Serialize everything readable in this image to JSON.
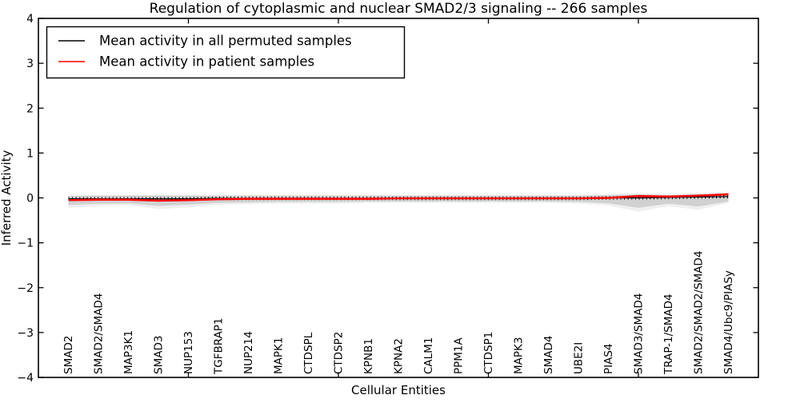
{
  "chart_data": {
    "type": "line",
    "title": "Regulation of cytoplasmic and nuclear SMAD2/3 signaling -- 266 samples",
    "xlabel": "Cellular Entities",
    "ylabel": "Inferred Activity",
    "xlim": [
      0,
      24
    ],
    "ylim": [
      -4,
      4
    ],
    "grid": false,
    "legend_position": "upper left",
    "yticks": [
      4,
      3,
      2,
      1,
      0,
      -1,
      -2,
      -3,
      -4
    ],
    "yticklabels": [
      "4",
      "3",
      "2",
      "1",
      "0",
      "−1",
      "−2",
      "−3",
      "−4"
    ],
    "xticks_major": [
      5,
      10,
      15,
      20
    ],
    "categories": [
      "SMAD2",
      "SMAD2/SMAD4",
      "MAP3K1",
      "SMAD3",
      "NUP153",
      "TGFBRAP1",
      "NUP214",
      "MAPK1",
      "CTDSPL",
      "CTDSP2",
      "KPNB1",
      "KPNA2",
      "CALM1",
      "PPM1A",
      "CTDSP1",
      "MAPK3",
      "SMAD4",
      "UBE2I",
      "PIAS4",
      "SMAD3/SMAD4",
      "TRAP-1/SMAD4",
      "SMAD2/SMAD2/SMAD4",
      "SMAD4/Ubc9/PIASy"
    ],
    "x": [
      1,
      2,
      3,
      4,
      5,
      6,
      7,
      8,
      9,
      10,
      11,
      12,
      13,
      14,
      15,
      16,
      17,
      18,
      19,
      20,
      21,
      22,
      23
    ],
    "series": [
      {
        "name": "Mean activity in all permuted samples",
        "color": "#000000",
        "values": [
          -0.02,
          -0.02,
          -0.02,
          -0.02,
          -0.02,
          -0.01,
          -0.01,
          -0.01,
          -0.01,
          -0.01,
          -0.01,
          -0.01,
          -0.01,
          -0.01,
          -0.01,
          -0.01,
          -0.01,
          -0.01,
          0.0,
          0.0,
          0.01,
          0.02,
          0.03
        ]
      },
      {
        "name": "Mean activity in patient samples",
        "color": "#ff0000",
        "values": [
          -0.05,
          -0.04,
          -0.04,
          -0.06,
          -0.05,
          -0.03,
          -0.02,
          -0.02,
          -0.02,
          -0.02,
          -0.02,
          -0.01,
          -0.01,
          -0.01,
          -0.01,
          -0.01,
          -0.01,
          -0.01,
          0.0,
          0.04,
          0.03,
          0.05,
          0.08
        ]
      }
    ],
    "band": {
      "name": "permuted-samples-spread",
      "color": "#a8a8a8",
      "upper": [
        0.04,
        0.05,
        0.05,
        0.05,
        0.05,
        0.05,
        0.05,
        0.05,
        0.05,
        0.05,
        0.05,
        0.05,
        0.05,
        0.05,
        0.05,
        0.05,
        0.05,
        0.05,
        0.06,
        0.08,
        0.06,
        0.08,
        0.09
      ],
      "lower": [
        -0.16,
        -0.13,
        -0.12,
        -0.18,
        -0.15,
        -0.11,
        -0.1,
        -0.09,
        -0.09,
        -0.09,
        -0.08,
        -0.08,
        -0.08,
        -0.08,
        -0.08,
        -0.08,
        -0.08,
        -0.09,
        -0.12,
        -0.22,
        -0.13,
        -0.19,
        -0.08
      ]
    }
  }
}
